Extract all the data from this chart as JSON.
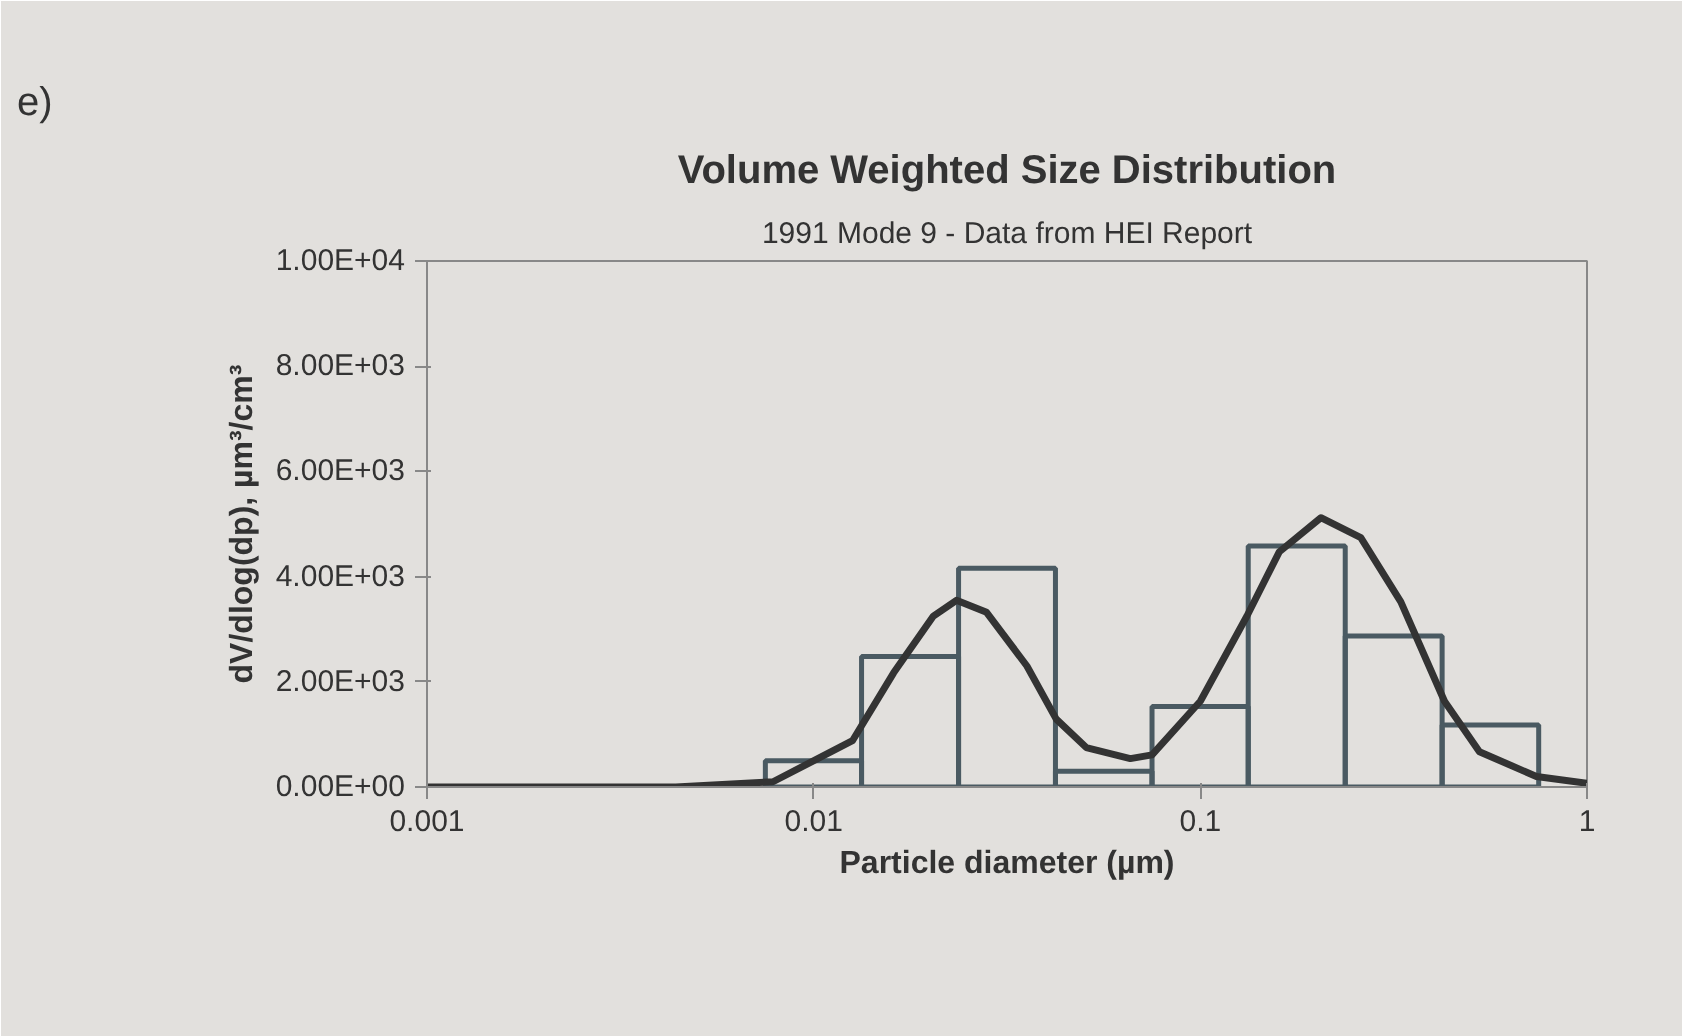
{
  "chart_data": {
    "type": "histogram",
    "title": "Volume Weighted Size Distribution",
    "subtitle": "1991 Mode 9 - Data from HEI Report",
    "xlabel": "Particle diameter (µm)",
    "ylabel": "dV/dlog(dp), µm³/cm³",
    "annotations": [
      "e)"
    ],
    "bins": [
      0.0075,
      0.0133,
      0.0237,
      0.0422,
      0.075,
      0.133,
      0.237,
      0.422,
      0.75
    ],
    "values": [
      500,
      2480,
      4160,
      300,
      1530,
      4580,
      2870,
      1180
    ],
    "color": "#4a5a62",
    "series": [
      {
        "type": "line",
        "color": "#333333",
        "x": [
          0.001,
          0.0044,
          0.00785,
          0.0126,
          0.0161,
          0.0204,
          0.0234,
          0.028,
          0.0356,
          0.0424,
          0.0507,
          0.0659,
          0.075,
          0.1,
          0.132,
          0.16,
          0.205,
          0.26,
          0.33,
          0.428,
          0.527,
          0.74,
          1
        ],
        "values": [
          0,
          0,
          100,
          880,
          2170,
          3250,
          3550,
          3320,
          2300,
          1290,
          750,
          540,
          610,
          1630,
          3250,
          4470,
          5120,
          4740,
          3520,
          1630,
          670,
          200,
          70
        ]
      }
    ],
    "log": "x",
    "xlim": [
      0.001,
      1
    ],
    "xticks": [
      0.001,
      0.01,
      0.1,
      1
    ],
    "ylim": [
      0,
      10000
    ],
    "yticks": [
      {
        "value": 0,
        "label": "0.00E+00"
      },
      {
        "value": 2000,
        "label": "2.00E+03"
      },
      {
        "value": 4000,
        "label": "4.00E+03"
      },
      {
        "value": 6000,
        "label": "6.00E+03"
      },
      {
        "value": 8000,
        "label": "8.00E+03"
      },
      {
        "value": 10000,
        "label": "1.00E+04"
      }
    ],
    "grid": false
  }
}
